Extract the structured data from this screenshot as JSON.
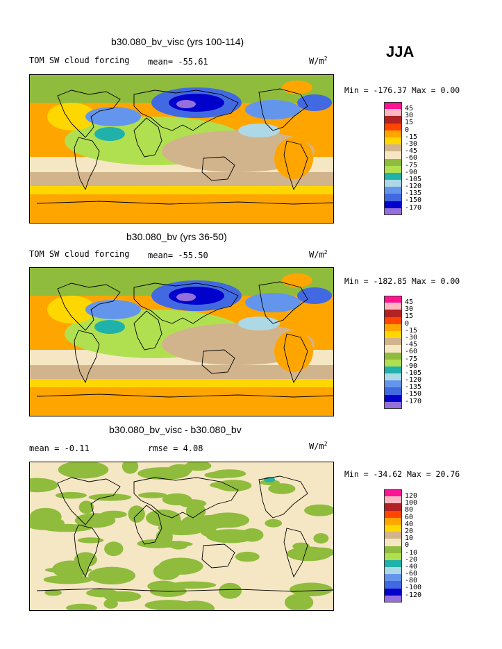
{
  "season": "JJA",
  "units_base": "W/m",
  "units_exp": "2",
  "panels": [
    {
      "title": "b30.080_bv_visc (yrs 100-114)",
      "left_label": "TOM SW cloud forcing",
      "stat_label": "mean= -55.61",
      "rmse_label": "",
      "minmax": "Min = -176.37 Max =   0.00",
      "colorbar": {
        "labels": [
          "45",
          "30",
          "15",
          "0",
          "-15",
          "-30",
          "-45",
          "-60",
          "-75",
          "-90",
          "-105",
          "-120",
          "-135",
          "-150",
          "-170"
        ],
        "colors": [
          "#ff1493",
          "#ffb6c1",
          "#b22222",
          "#ff4500",
          "#ffa500",
          "#ffd700",
          "#d2b48c",
          "#f5e6c4",
          "#8fbc3c",
          "#b0e050",
          "#20b2aa",
          "#add8e6",
          "#6495ed",
          "#4169e1",
          "#0000cd",
          "#9370db"
        ]
      },
      "map_style": "model"
    },
    {
      "title": "b30.080_bv (yrs 36-50)",
      "left_label": "TOM SW cloud forcing",
      "stat_label": "mean= -55.50",
      "rmse_label": "",
      "minmax": "Min = -182.85 Max =   0.00",
      "colorbar": {
        "labels": [
          "45",
          "30",
          "15",
          "0",
          "-15",
          "-30",
          "-45",
          "-60",
          "-75",
          "-90",
          "-105",
          "-120",
          "-135",
          "-150",
          "-170"
        ],
        "colors": [
          "#ff1493",
          "#ffb6c1",
          "#b22222",
          "#ff4500",
          "#ffa500",
          "#ffd700",
          "#d2b48c",
          "#f5e6c4",
          "#8fbc3c",
          "#b0e050",
          "#20b2aa",
          "#add8e6",
          "#6495ed",
          "#4169e1",
          "#0000cd",
          "#9370db"
        ]
      },
      "map_style": "model"
    },
    {
      "title": "b30.080_bv_visc - b30.080_bv",
      "left_label": "mean =  -0.11",
      "stat_label": "",
      "rmse_label": "rmse =   4.08",
      "minmax": "Min = -34.62 Max =  20.76",
      "colorbar": {
        "labels": [
          "120",
          "100",
          "80",
          "60",
          "40",
          "20",
          "10",
          "0",
          "-10",
          "-20",
          "-40",
          "-60",
          "-80",
          "-100",
          "-120"
        ],
        "colors": [
          "#ff1493",
          "#ffb6c1",
          "#b22222",
          "#ff4500",
          "#ffa500",
          "#ffd700",
          "#d2b48c",
          "#f5e6c4",
          "#8fbc3c",
          "#b0e050",
          "#20b2aa",
          "#add8e6",
          "#6495ed",
          "#4169e1",
          "#0000cd",
          "#9370db"
        ]
      },
      "map_style": "diff"
    }
  ]
}
